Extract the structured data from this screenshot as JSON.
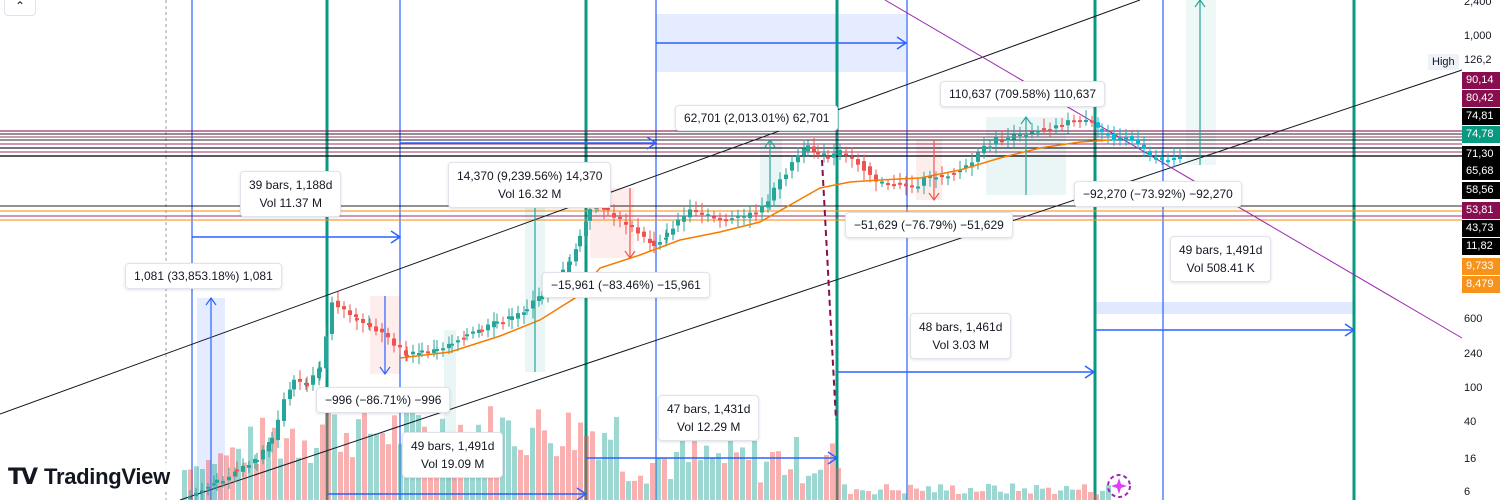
{
  "chart_data": {
    "type": "candlestick",
    "subtype": "log-scale price chart with volume bars and measurement annotations",
    "y_scale": "log",
    "y_axis_ticks": [
      "2,400",
      "1,000",
      "600",
      "240",
      "100",
      "40",
      "16",
      "6"
    ],
    "high_label": "High",
    "high_value": "126,2",
    "price_tags": [
      {
        "text": "90,14",
        "bg": "#880e4f",
        "fg": "#ffffff"
      },
      {
        "text": "80,42",
        "bg": "#880e4f",
        "fg": "#ffffff"
      },
      {
        "text": "74,81",
        "bg": "#000000",
        "fg": "#ffffff"
      },
      {
        "text": "74,78",
        "bg": "#089981",
        "fg": "#ffffff"
      },
      {
        "text": "71,30",
        "bg": "#000000",
        "fg": "#ffffff"
      },
      {
        "text": "65,68",
        "bg": "#000000",
        "fg": "#ffffff"
      },
      {
        "text": "58,56",
        "bg": "#000000",
        "fg": "#ffffff"
      },
      {
        "text": "53,81",
        "bg": "#880e4f",
        "fg": "#ffffff"
      },
      {
        "text": "43,73",
        "bg": "#000000",
        "fg": "#ffffff"
      },
      {
        "text": "11,82",
        "bg": "#000000",
        "fg": "#ffffff"
      },
      {
        "text": "9,733",
        "bg": "#f7931a",
        "fg": "#ffffff"
      },
      {
        "text": "8,479",
        "bg": "#f7931a",
        "fg": "#ffffff"
      }
    ],
    "annotations": {
      "range_1188": {
        "line1": "39 bars, 1,188d",
        "line2": "Vol 11.37 M"
      },
      "gain_1081": {
        "line1": "1,081 (33,853.18%) 1,081"
      },
      "drop_996": {
        "line1": "−996 (−86.71%) −996"
      },
      "range_1491a": {
        "line1": "49 bars, 1,491d",
        "line2": "Vol 19.09 M"
      },
      "gain_14370": {
        "line1": "14,370 (9,239.56%) 14,370",
        "line2": "Vol 16.32 M"
      },
      "drop_15961": {
        "line1": "−15,961 (−83.46%) −15,961"
      },
      "range_1431": {
        "line1": "47 bars, 1,431d",
        "line2": "Vol 12.29 M"
      },
      "gain_62701": {
        "line1": "62,701 (2,013.01%) 62,701"
      },
      "drop_51629": {
        "line1": "−51,629 (−76.79%) −51,629"
      },
      "range_1461": {
        "line1": "48 bars, 1,461d",
        "line2": "Vol 3.03 M"
      },
      "gain_110637": {
        "line1": "110,637 (709.58%) 110,637"
      },
      "drop_92270": {
        "line1": "−92,270 (−73.92%) −92,270"
      },
      "range_1491b": {
        "line1": "49 bars, 1,491d",
        "line2": "Vol 508.41 K"
      }
    },
    "colors": {
      "up": "#26a69a",
      "down": "#ef5350",
      "cycle_line": "#089981",
      "measure_blue": "#2962ff",
      "ma_orange": "#f57c00",
      "trend_purple": "#9c27b0",
      "pivot_maroon": "#880e4f",
      "pivot_orange": "#f7931a"
    }
  },
  "branding": {
    "logo_mark": "TV",
    "logo_text": "TradingView"
  },
  "ui": {
    "collapse_icon": "chevron-up-icon"
  }
}
